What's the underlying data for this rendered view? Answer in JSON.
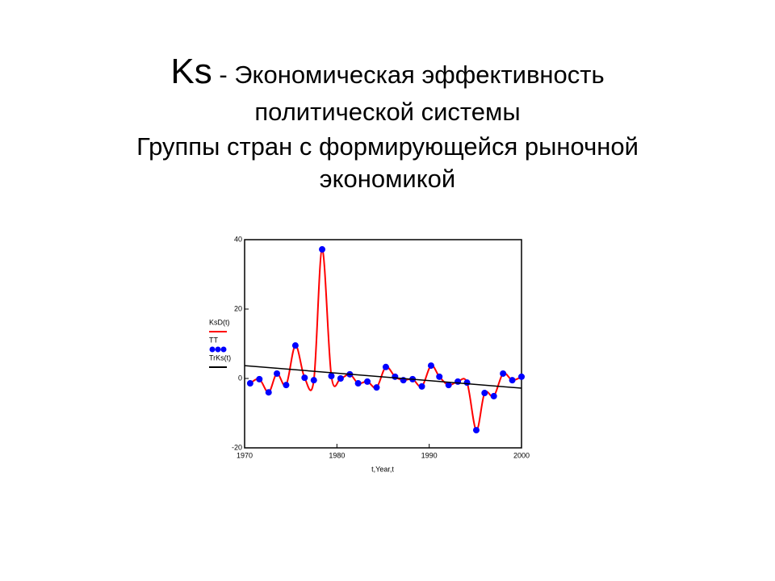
{
  "chart_data": {
    "type": "line",
    "title_symbol": "Ks",
    "title": "- Экономическая эффективность политической системы",
    "subtitle": "Группы стран с формирующейся рыночной экономикой",
    "x_label": "t,Year,t",
    "x": [
      1970.6,
      1971.6,
      1972.6,
      1973.5,
      1974.5,
      1975.5,
      1976.5,
      1977.5,
      1978.4,
      1979.4,
      1980.4,
      1981.4,
      1982.3,
      1983.3,
      1984.3,
      1985.3,
      1986.3,
      1987.2,
      1988.2,
      1989.2,
      1990.2,
      1991.1,
      1992.1,
      1993.1,
      1994.1,
      1995.1,
      1996.0,
      1997.0,
      1998.0,
      1999.0,
      2000.0
    ],
    "series": [
      {
        "name": "KsD(t)",
        "color": "#ff0000",
        "style": "smooth",
        "values": [
          -1.4,
          -0.2,
          -4,
          1.4,
          -1.9,
          9.5,
          0.2,
          -0.5,
          37.2,
          0.7,
          0,
          1.2,
          -1.4,
          -0.9,
          -2.6,
          3.3,
          0.5,
          -0.5,
          -0.2,
          -2.3,
          3.7,
          0.5,
          -1.9,
          -0.9,
          -1.2,
          -14.9,
          -4.2,
          -5.1,
          1.4,
          -0.5,
          0.5
        ]
      },
      {
        "name": "TT",
        "color": "#0000ff",
        "style": "dots",
        "values": [
          -1.4,
          -0.2,
          -4,
          1.4,
          -1.9,
          9.5,
          0.2,
          -0.5,
          37.2,
          0.7,
          0,
          1.2,
          -1.4,
          -0.9,
          -2.6,
          3.3,
          0.5,
          -0.5,
          -0.2,
          -2.3,
          3.7,
          0.5,
          -1.9,
          -0.9,
          -1.2,
          -14.9,
          -4.2,
          -5.1,
          1.4,
          -0.5,
          0.5
        ]
      },
      {
        "name": "TrKs(t)",
        "color": "#000000",
        "style": "line",
        "x": [
          1970,
          2000
        ],
        "values": [
          3.7,
          -2.8
        ]
      }
    ],
    "xlim": [
      1970,
      2000
    ],
    "xticks": [
      1970,
      1980,
      1990,
      2000
    ],
    "ylim": [
      -20,
      40
    ],
    "yticks": [
      -20,
      0,
      20,
      40
    ]
  }
}
